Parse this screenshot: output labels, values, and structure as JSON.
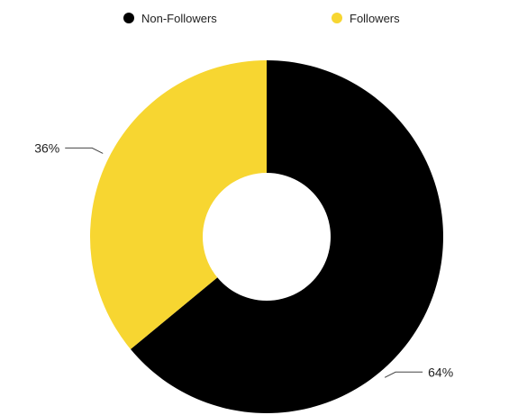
{
  "chart_data": {
    "type": "pie",
    "donut": true,
    "title": "",
    "categories": [
      "Non-Followers",
      "Followers"
    ],
    "values": [
      64,
      36
    ],
    "value_labels": [
      "64%",
      "36%"
    ],
    "unit": "%",
    "colors": [
      "#000000",
      "#F7D631"
    ],
    "legend": {
      "placement": "top",
      "entries": [
        "Non-Followers",
        "Followers"
      ]
    },
    "start_angle_deg": 0,
    "direction": "clockwise"
  }
}
